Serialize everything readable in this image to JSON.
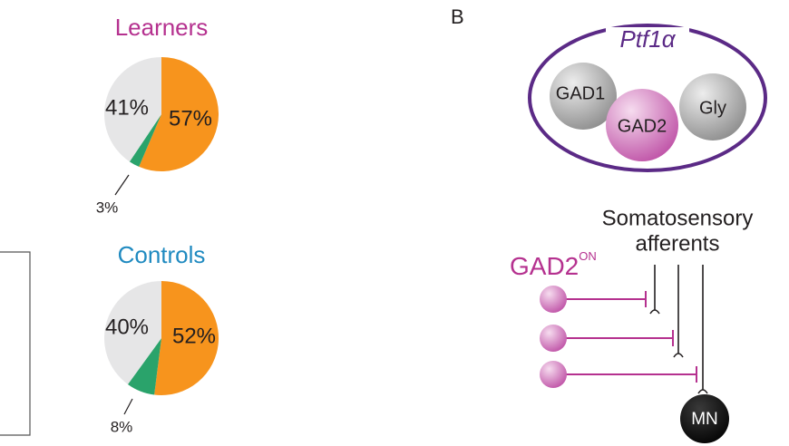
{
  "chart_data": [
    {
      "type": "pie",
      "title": "Learners",
      "title_color": "#b5318f",
      "values": [
        57,
        3,
        41
      ],
      "value_labels": [
        "57%",
        "3%",
        "41%"
      ],
      "colors": [
        "#f7941d",
        "#2aa36b",
        "#e6e6e7"
      ]
    },
    {
      "type": "pie",
      "title": "Controls",
      "title_color": "#1f8ac0",
      "values": [
        52,
        8,
        40
      ],
      "value_labels": [
        "52%",
        "8%",
        "40%"
      ],
      "colors": [
        "#f7941d",
        "#2aa36b",
        "#e6e6e7"
      ]
    }
  ],
  "panel_b": {
    "label": "B",
    "cell_type": "Ptf1α",
    "cells": [
      "GAD1",
      "GAD2",
      "Gly"
    ],
    "afferents": [
      "Somatosensory",
      "afferents"
    ],
    "interneuron": "GAD2",
    "interneuron_superscript": "ON",
    "motor_neuron": "MN"
  }
}
